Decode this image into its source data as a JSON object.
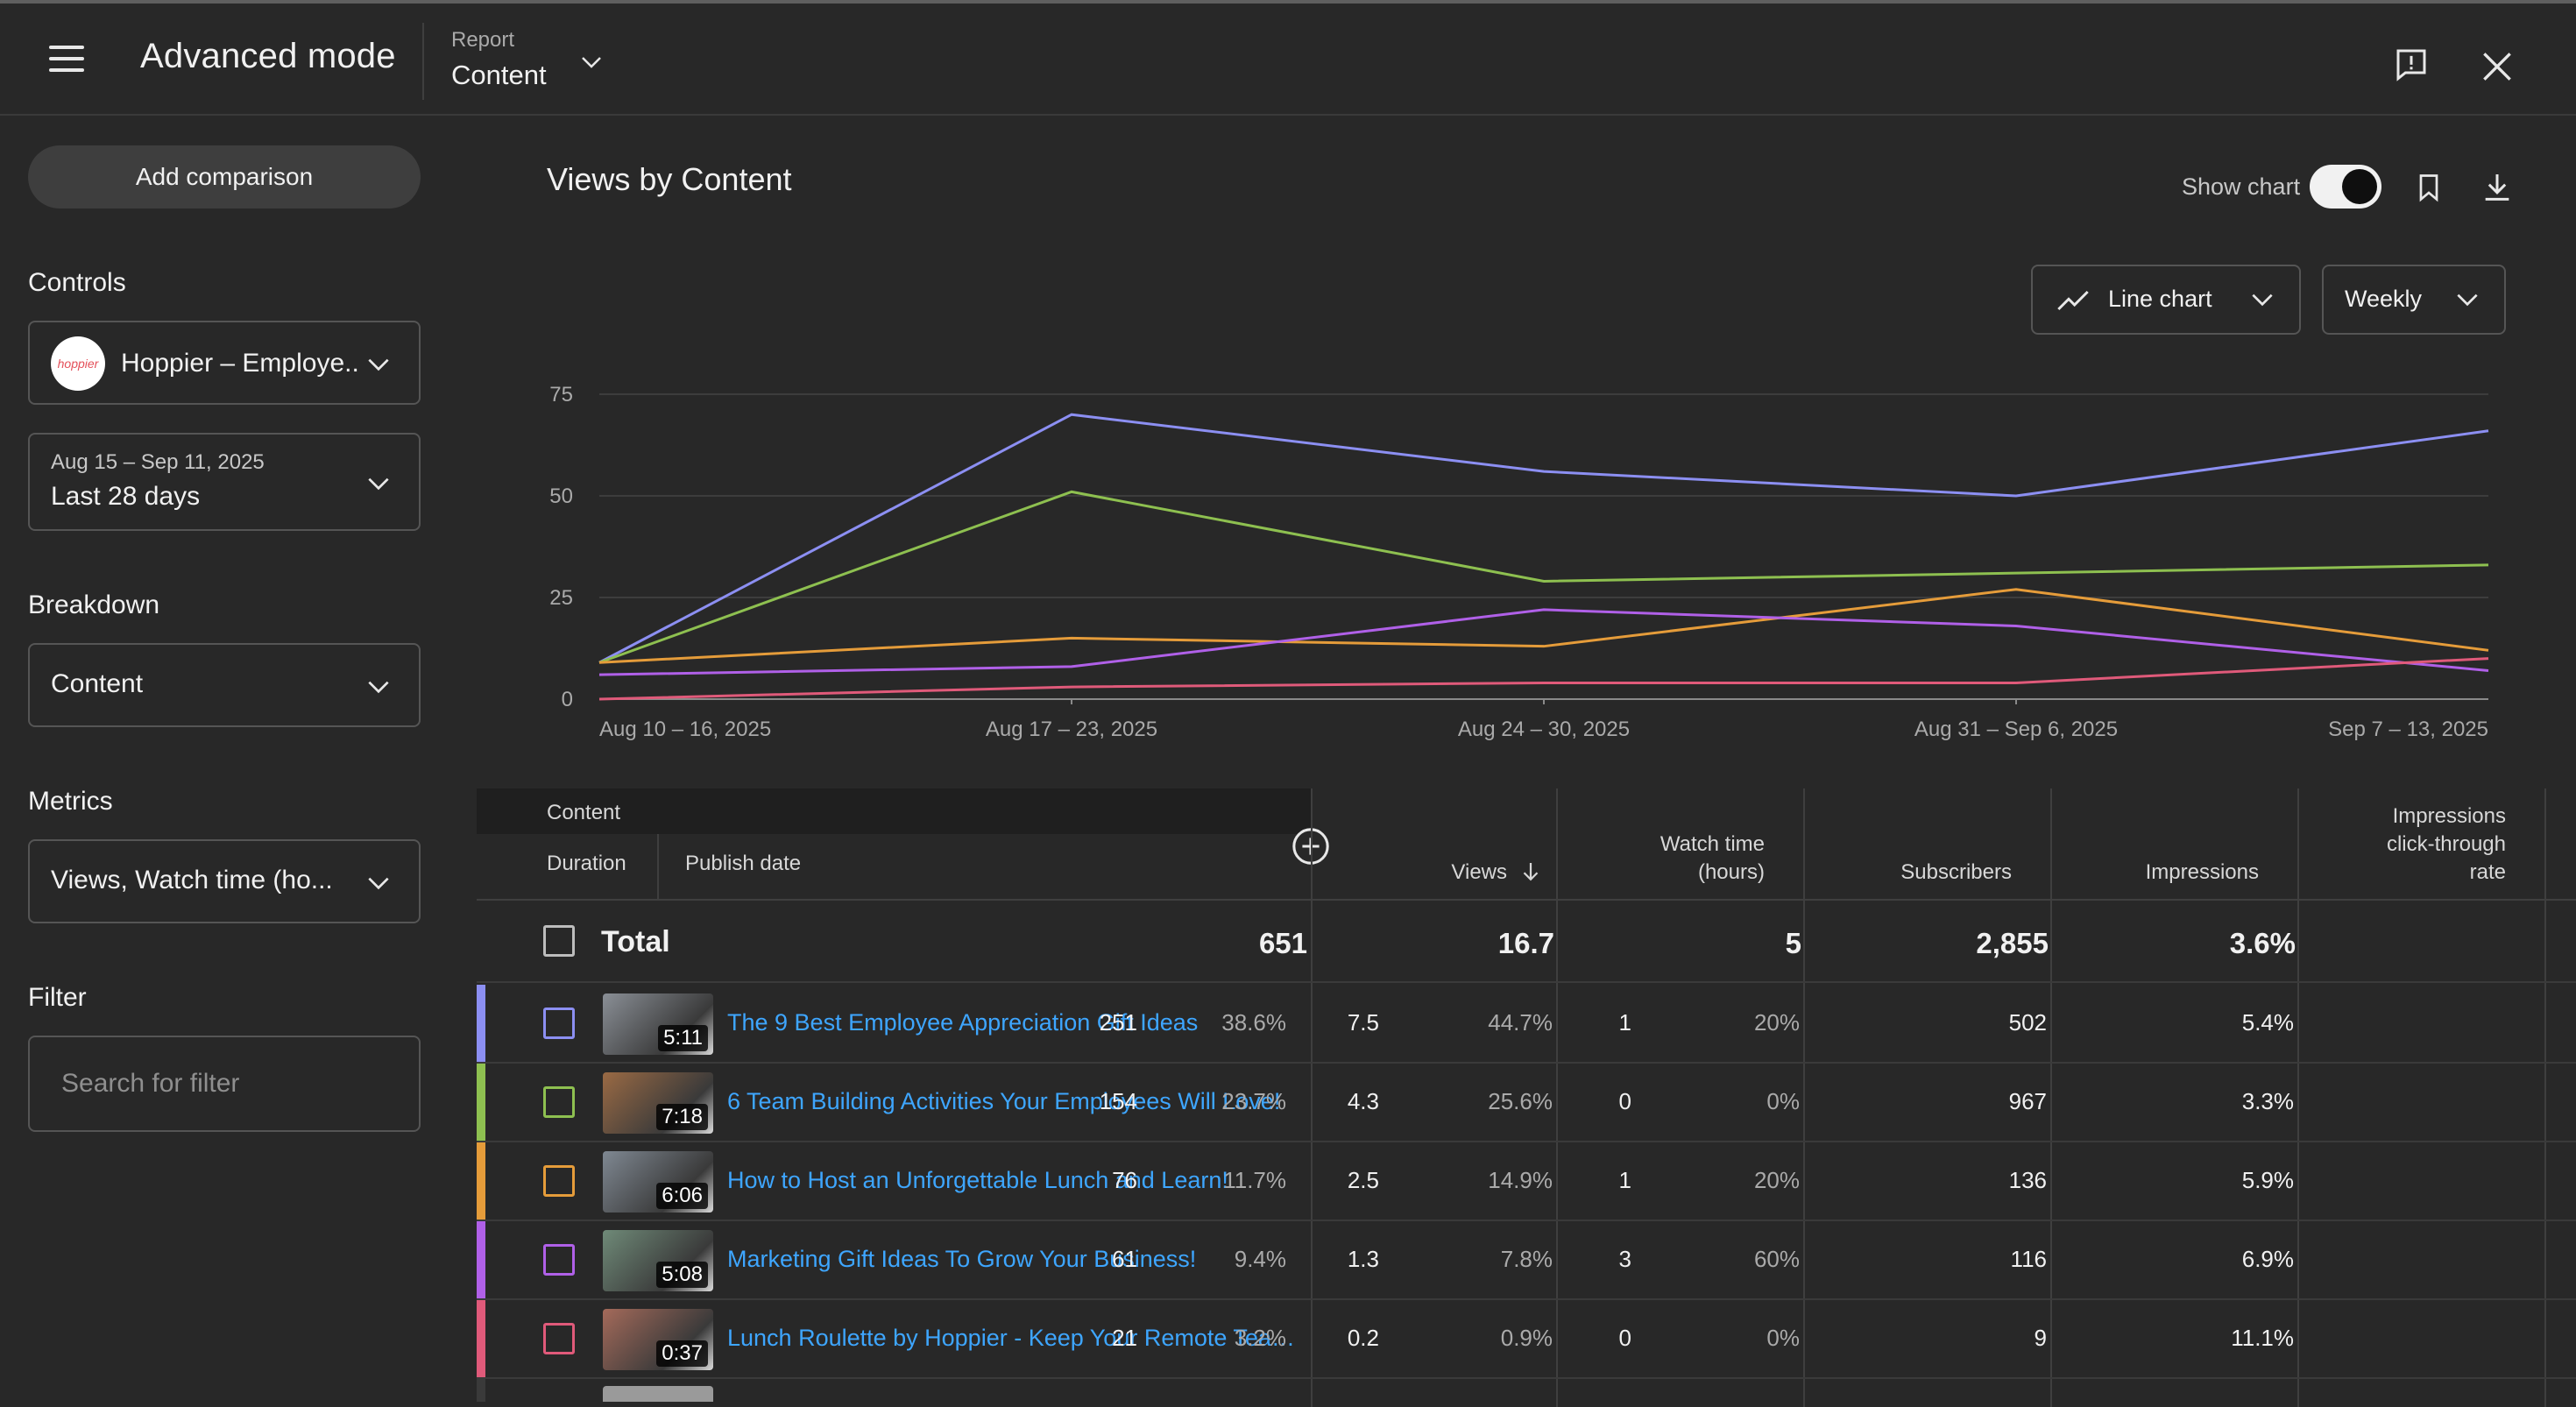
{
  "header": {
    "title": "Advanced mode",
    "report_label": "Report",
    "report_value": "Content"
  },
  "sidebar": {
    "add_comparison": "Add comparison",
    "controls_label": "Controls",
    "channel": {
      "avatar_text": "hoppier",
      "name": "Hoppier – Employe..."
    },
    "date_range": {
      "dates": "Aug 15 – Sep 11, 2025",
      "label": "Last 28 days"
    },
    "breakdown_label": "Breakdown",
    "breakdown_value": "Content",
    "metrics_label": "Metrics",
    "metrics_value": "Views, Watch time (ho...",
    "filter_label": "Filter",
    "filter_placeholder": "Search for filter"
  },
  "main": {
    "title": "Views by Content",
    "show_chart_label": "Show chart",
    "show_chart_on": true,
    "chart_type_label": "Line chart",
    "interval_label": "Weekly"
  },
  "chart_data": {
    "type": "line",
    "categories": [
      "Aug 10 – 16, 2025",
      "Aug 17 – 23, 2025",
      "Aug 24 – 30, 2025",
      "Aug 31 – Sep 6, 2025",
      "Sep 7 – 13, 2025"
    ],
    "y_ticks": [
      0,
      25,
      50,
      75
    ],
    "ylim": [
      0,
      75
    ],
    "grid": true,
    "series": [
      {
        "color": "#8c8ff2",
        "values": [
          9,
          70,
          56,
          50,
          66
        ]
      },
      {
        "color": "#8ec050",
        "values": [
          9,
          51,
          29,
          31,
          33
        ]
      },
      {
        "color": "#e59c3a",
        "values": [
          9,
          15,
          13,
          27,
          12
        ]
      },
      {
        "color": "#b060e8",
        "values": [
          6,
          8,
          22,
          18,
          7
        ]
      },
      {
        "color": "#e05a7a",
        "values": [
          0,
          3,
          4,
          4,
          10
        ]
      }
    ]
  },
  "table": {
    "headers": {
      "content": "Content",
      "duration": "Duration",
      "publish_date": "Publish date",
      "views": "Views",
      "watch_time_1": "Watch time",
      "watch_time_2": "(hours)",
      "subscribers": "Subscribers",
      "impressions": "Impressions",
      "ctr_1": "Impressions",
      "ctr_2": "click-through",
      "ctr_3": "rate"
    },
    "total": {
      "label": "Total",
      "views": "651",
      "watch_time": "16.7",
      "subscribers": "5",
      "impressions": "2,855",
      "ctr": "3.6%"
    },
    "rows": [
      {
        "color": "#8c8ff2",
        "duration": "5:11",
        "title": "The 9 Best Employee Appreciation Gift Ideas",
        "views": "251",
        "views_pct": "38.6%",
        "watch": "7.5",
        "watch_pct": "44.7%",
        "subs": "1",
        "subs_pct": "20%",
        "impressions": "502",
        "ctr": "5.4%",
        "thumb": "#8a8f96"
      },
      {
        "color": "#8ec050",
        "duration": "7:18",
        "title": "6 Team Building Activities Your Employees Will Love!",
        "views": "154",
        "views_pct": "23.7%",
        "watch": "4.3",
        "watch_pct": "25.6%",
        "subs": "0",
        "subs_pct": "0%",
        "impressions": "967",
        "ctr": "3.3%",
        "thumb": "#9a6a44"
      },
      {
        "color": "#e59c3a",
        "duration": "6:06",
        "title": "How to Host an Unforgettable Lunch and Learn!",
        "views": "76",
        "views_pct": "11.7%",
        "watch": "2.5",
        "watch_pct": "14.9%",
        "subs": "1",
        "subs_pct": "20%",
        "impressions": "136",
        "ctr": "5.9%",
        "thumb": "#7f8892"
      },
      {
        "color": "#b060e8",
        "duration": "5:08",
        "title": "Marketing Gift Ideas To Grow Your Business!",
        "views": "61",
        "views_pct": "9.4%",
        "watch": "1.3",
        "watch_pct": "7.8%",
        "subs": "3",
        "subs_pct": "60%",
        "impressions": "116",
        "ctr": "6.9%",
        "thumb": "#6f8a78"
      },
      {
        "color": "#e05a7a",
        "duration": "0:37",
        "title": "Lunch Roulette by Hoppier - Keep Your Remote Team C...",
        "views": "21",
        "views_pct": "3.2%",
        "watch": "0.2",
        "watch_pct": "0.9%",
        "subs": "0",
        "subs_pct": "0%",
        "impressions": "9",
        "ctr": "11.1%",
        "thumb": "#a46a5a"
      }
    ]
  }
}
